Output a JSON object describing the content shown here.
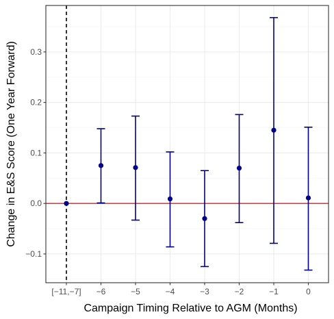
{
  "chart_data": {
    "type": "scatter",
    "title": "",
    "xlabel": "Campaign Timing Relative to AGM (Months)",
    "ylabel": "Change in E&S Score (One Year Forward)",
    "categories": [
      "[−11,−7]",
      "−6",
      "−5",
      "−4",
      "−3",
      "−2",
      "−1",
      "0"
    ],
    "estimates": [
      0.0,
      0.075,
      0.071,
      0.009,
      -0.03,
      0.07,
      0.145,
      0.011
    ],
    "ci_lower": [
      0.0,
      0.001,
      -0.033,
      -0.086,
      -0.125,
      -0.038,
      -0.079,
      -0.132
    ],
    "ci_upper": [
      0.0,
      0.148,
      0.173,
      0.102,
      0.065,
      0.176,
      0.368,
      0.151
    ],
    "ylim": [
      -0.157,
      0.392
    ],
    "yticks": [
      -0.1,
      0.0,
      0.1,
      0.2,
      0.3
    ],
    "ytick_labels": [
      "−0.1",
      "0.0",
      "0.1",
      "0.2",
      "0.3"
    ],
    "reference_hline": 0.0,
    "reference_vline_category": 0,
    "grid": true,
    "colors": {
      "points": "#00008B",
      "hline": "#E41A1C",
      "vline": "#000000",
      "grid_major": "#EBEBEB",
      "grid_minor": "#F5F5F5",
      "panel_border": "#333333"
    }
  }
}
